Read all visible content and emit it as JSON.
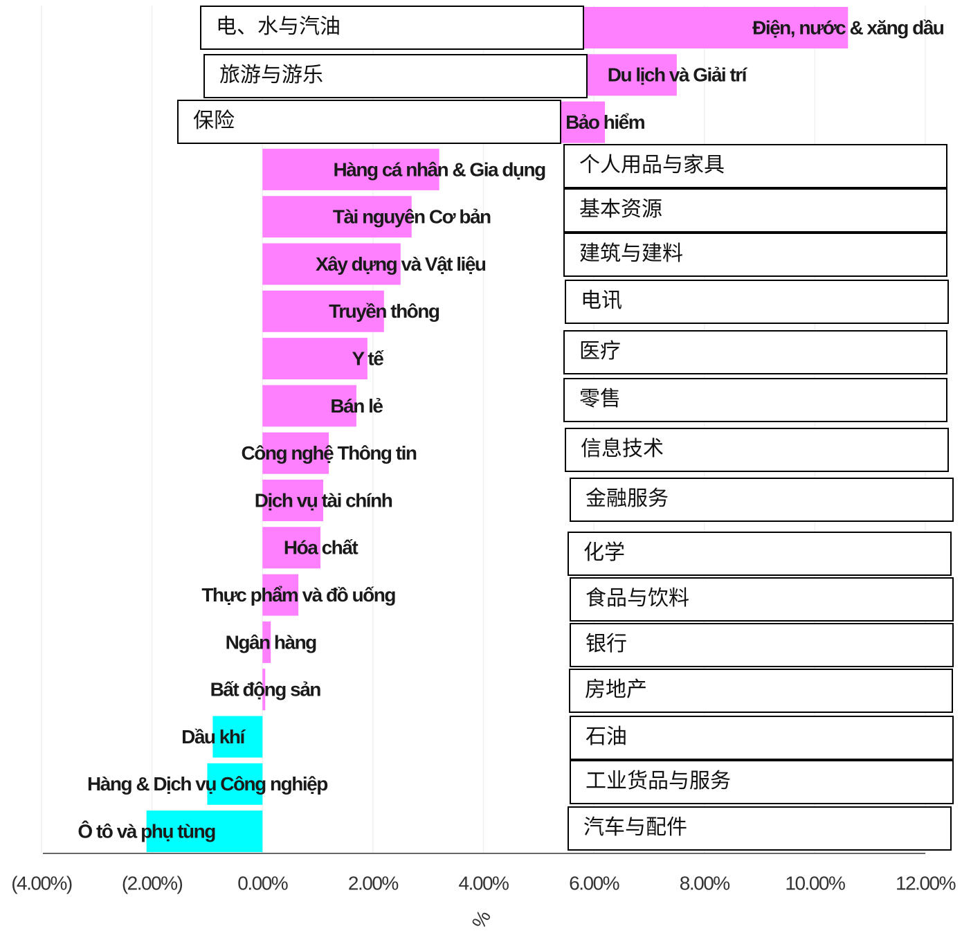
{
  "chart_data": {
    "type": "barh",
    "categories": [
      "Điện, nước & xăng dầu",
      "Du lịch và Giải trí",
      "Bảo hiểm",
      "Hàng cá nhân & Gia dụng",
      "Tài nguyên Cơ bản",
      "Xây dựng và Vật liệu",
      "Truyền thông",
      "Y tế",
      "Bán lẻ",
      "Công nghệ Thông tin",
      "Dịch vụ tài chính",
      "Hóa chất",
      "Thực phẩm và đồ uống",
      "Ngân hàng",
      "Bất động sản",
      "Dầu khí",
      "Hàng & Dịch vụ Công nghiệp",
      "Ô tô và phụ tùng"
    ],
    "values": [
      10.6,
      7.5,
      6.2,
      3.2,
      2.7,
      2.5,
      2.2,
      1.9,
      1.7,
      1.2,
      1.1,
      1.05,
      0.65,
      0.15,
      0.05,
      -0.9,
      -1.0,
      -2.1
    ],
    "positive_color": "#ff80ff",
    "negative_color": "#00ffff",
    "xlabel": "%",
    "xlim": [
      -4,
      12
    ],
    "xticks": [
      {
        "value": -4,
        "label": "(4.00%)"
      },
      {
        "value": -2,
        "label": "(2.00%)"
      },
      {
        "value": 0,
        "label": "0.00%"
      },
      {
        "value": 2,
        "label": "2.00%"
      },
      {
        "value": 4,
        "label": "4.00%"
      },
      {
        "value": 6,
        "label": "6.00%"
      },
      {
        "value": 8,
        "label": "8.00%"
      },
      {
        "value": 10,
        "label": "10.00%"
      },
      {
        "value": 12,
        "label": "12.00%"
      }
    ],
    "grid": true,
    "translations": [
      "电、水与汽油",
      "旅游与游乐",
      "保险",
      "个人用品与家具",
      "基本资源",
      "建筑与建料",
      "电讯",
      "医疗",
      "零售",
      "信息技术",
      "金融服务",
      "化学",
      "食品与饮料",
      "银行",
      "房地产",
      "石油",
      "工业货品与服务",
      "汽车与配件"
    ]
  }
}
